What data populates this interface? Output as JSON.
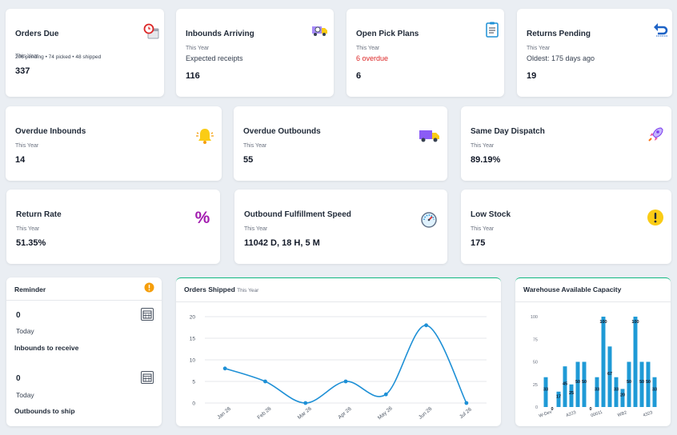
{
  "row1": [
    {
      "title": "Orders Due",
      "period": "This Year",
      "sub": "206 pending • 74 picked • 48 shipped",
      "value": "337",
      "icon": "calendar-clock-icon"
    },
    {
      "title": "Inbounds Arriving",
      "period": "This Year",
      "sub": "Expected receipts",
      "value": "116",
      "icon": "delivery-truck-clock-icon"
    },
    {
      "title": "Open Pick Plans",
      "period": "This Year",
      "sub": "6 overdue",
      "value": "6",
      "icon": "clipboard-icon"
    },
    {
      "title": "Returns Pending",
      "period": "This Year",
      "sub": "Oldest: 175 days ago",
      "value": "19",
      "icon": "return-arrow-icon"
    }
  ],
  "row2": [
    {
      "title": "Overdue Inbounds",
      "period": "This Year",
      "value": "14",
      "icon": "bell-icon"
    },
    {
      "title": "Overdue Outbounds",
      "period": "This Year",
      "value": "55",
      "icon": "delivery-truck-icon"
    },
    {
      "title": "Same Day Dispatch",
      "period": "This Year",
      "value": "89.19%",
      "icon": "rocket-icon"
    }
  ],
  "row3": [
    {
      "title": "Return Rate",
      "period": "This Year",
      "value": "51.35%",
      "icon": "percent-icon"
    },
    {
      "title": "Outbound Fulfillment Speed",
      "period": "This Year",
      "value": "11042 D, 18 H, 5 M",
      "icon": "speedometer-icon"
    },
    {
      "title": "Low Stock",
      "period": "This Year",
      "value": "175",
      "icon": "warning-icon"
    }
  ],
  "reminder": {
    "title": "Reminder",
    "items": [
      {
        "value": "0",
        "day": "Today",
        "label": "Inbounds to receive"
      },
      {
        "value": "0",
        "day": "Today",
        "label": "Outbounds to ship"
      }
    ]
  },
  "orders_panel": {
    "title": "Orders Shipped",
    "period": "This Year"
  },
  "capacity_panel": {
    "title": "Warehouse Available Capacity"
  },
  "colors": {
    "accent": "#1e90d6",
    "panel_border": "#10b981",
    "warning": "#f5b400",
    "alert": "#dc2626"
  },
  "chart_data": [
    {
      "type": "line",
      "categories": [
        "Jan 26",
        "Feb 26",
        "Mar 26",
        "Apr 26",
        "May 26",
        "Jun 26",
        "Jul 26"
      ],
      "values": [
        8,
        5,
        0,
        5,
        2,
        18,
        0
      ],
      "ylim": [
        0,
        20
      ],
      "yticks": [
        0,
        5,
        10,
        15,
        20
      ],
      "grid": true,
      "smooth": true
    },
    {
      "type": "bar",
      "values": [
        33,
        0,
        17,
        45,
        25,
        50,
        50,
        0,
        33,
        100,
        67,
        33,
        20,
        50,
        100,
        50,
        50,
        33
      ],
      "bar_labels": [
        "33",
        "0",
        "17",
        "45",
        "25",
        "50",
        "50",
        "0",
        "33",
        "100",
        "67",
        "33",
        "20",
        "50",
        "100",
        "50",
        "50",
        "33"
      ],
      "x_tick_labels": [
        "W-Dev",
        "A223",
        "00011",
        "WB2",
        "4323"
      ],
      "x_tick_positions": [
        0,
        4,
        8,
        12,
        16
      ],
      "ylim": [
        0,
        100
      ],
      "yticks": [
        0,
        25,
        50,
        75,
        100
      ],
      "grid": false
    }
  ]
}
